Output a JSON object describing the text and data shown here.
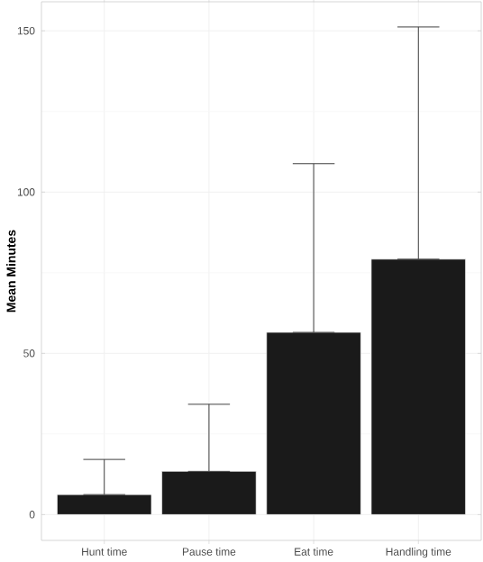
{
  "chart_data": {
    "type": "bar",
    "ylabel": "Mean Minutes",
    "categories": [
      "Hunt time",
      "Pause time",
      "Eat time",
      "Handling time"
    ],
    "values": [
      6.2,
      13.4,
      56.5,
      79.2
    ],
    "errors": [
      [
        6.2,
        17.1
      ],
      [
        13.4,
        34.2
      ],
      [
        56.5,
        108.8
      ],
      [
        79.2,
        151.2
      ]
    ],
    "color": "#1a1a1a",
    "ylim": [
      -8,
      159
    ],
    "yticks": [
      0,
      50,
      100,
      150
    ],
    "grid": true
  }
}
